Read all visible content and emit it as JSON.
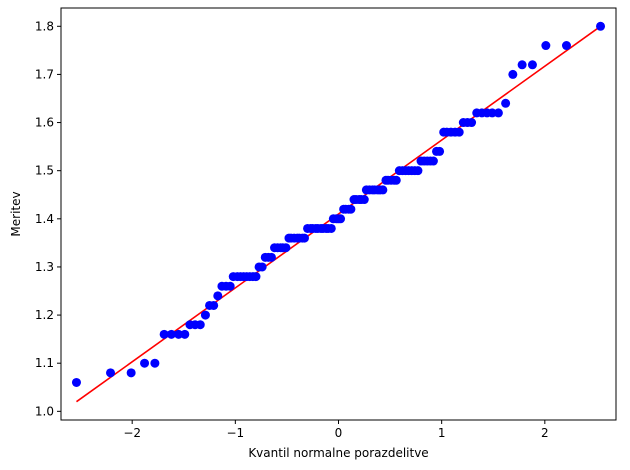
{
  "chart_data": {
    "type": "scatter",
    "title": "",
    "xlabel": "Kvantil normalne porazdelitve",
    "ylabel": "Meritev",
    "xlim": [
      -2.69,
      2.69
    ],
    "ylim": [
      0.982,
      1.838
    ],
    "x_ticks": [
      -2,
      -1,
      0,
      1,
      2
    ],
    "x_tick_labels": [
      "−2",
      "−1",
      "0",
      "1",
      "2"
    ],
    "y_ticks": [
      1.0,
      1.1,
      1.2,
      1.3,
      1.4,
      1.5,
      1.6,
      1.7,
      1.8
    ],
    "y_tick_labels": [
      "1.0",
      "1.1",
      "1.2",
      "1.3",
      "1.4",
      "1.5",
      "1.6",
      "1.7",
      "1.8"
    ],
    "grid": false,
    "point_color": "#0000ff",
    "line_color": "#ff0000",
    "fit_line": {
      "x": [
        -2.54,
        2.54
      ],
      "y": [
        1.02,
        1.8
      ]
    },
    "points": [
      [
        -2.54,
        1.06
      ],
      [
        -2.21,
        1.08
      ],
      [
        -2.01,
        1.08
      ],
      [
        -1.88,
        1.1
      ],
      [
        -1.78,
        1.1
      ],
      [
        -1.69,
        1.16
      ],
      [
        -1.62,
        1.16
      ],
      [
        -1.55,
        1.16
      ],
      [
        -1.49,
        1.16
      ],
      [
        -1.44,
        1.18
      ],
      [
        -1.39,
        1.18
      ],
      [
        -1.34,
        1.18
      ],
      [
        -1.29,
        1.2
      ],
      [
        -1.25,
        1.22
      ],
      [
        -1.21,
        1.22
      ],
      [
        -1.17,
        1.24
      ],
      [
        -1.13,
        1.26
      ],
      [
        -1.09,
        1.26
      ],
      [
        -1.05,
        1.26
      ],
      [
        -1.02,
        1.28
      ],
      [
        -0.98,
        1.28
      ],
      [
        -0.95,
        1.28
      ],
      [
        -0.92,
        1.28
      ],
      [
        -0.89,
        1.28
      ],
      [
        -0.86,
        1.28
      ],
      [
        -0.83,
        1.28
      ],
      [
        -0.8,
        1.28
      ],
      [
        -0.77,
        1.3
      ],
      [
        -0.74,
        1.3
      ],
      [
        -0.71,
        1.32
      ],
      [
        -0.68,
        1.32
      ],
      [
        -0.65,
        1.32
      ],
      [
        -0.62,
        1.34
      ],
      [
        -0.59,
        1.34
      ],
      [
        -0.56,
        1.34
      ],
      [
        -0.54,
        1.34
      ],
      [
        -0.51,
        1.34
      ],
      [
        -0.48,
        1.36
      ],
      [
        -0.46,
        1.36
      ],
      [
        -0.43,
        1.36
      ],
      [
        -0.4,
        1.36
      ],
      [
        -0.38,
        1.36
      ],
      [
        -0.35,
        1.36
      ],
      [
        -0.33,
        1.36
      ],
      [
        -0.3,
        1.38
      ],
      [
        -0.27,
        1.38
      ],
      [
        -0.25,
        1.38
      ],
      [
        -0.22,
        1.38
      ],
      [
        -0.2,
        1.38
      ],
      [
        -0.17,
        1.38
      ],
      [
        -0.15,
        1.38
      ],
      [
        -0.12,
        1.38
      ],
      [
        -0.1,
        1.38
      ],
      [
        -0.07,
        1.38
      ],
      [
        -0.05,
        1.4
      ],
      [
        -0.02,
        1.4
      ],
      [
        0.0,
        1.4
      ],
      [
        0.02,
        1.4
      ],
      [
        0.05,
        1.42
      ],
      [
        0.07,
        1.42
      ],
      [
        0.1,
        1.42
      ],
      [
        0.12,
        1.42
      ],
      [
        0.15,
        1.44
      ],
      [
        0.17,
        1.44
      ],
      [
        0.2,
        1.44
      ],
      [
        0.22,
        1.44
      ],
      [
        0.25,
        1.44
      ],
      [
        0.27,
        1.46
      ],
      [
        0.3,
        1.46
      ],
      [
        0.33,
        1.46
      ],
      [
        0.35,
        1.46
      ],
      [
        0.38,
        1.46
      ],
      [
        0.4,
        1.46
      ],
      [
        0.43,
        1.46
      ],
      [
        0.46,
        1.48
      ],
      [
        0.48,
        1.48
      ],
      [
        0.51,
        1.48
      ],
      [
        0.54,
        1.48
      ],
      [
        0.56,
        1.48
      ],
      [
        0.59,
        1.5
      ],
      [
        0.62,
        1.5
      ],
      [
        0.65,
        1.5
      ],
      [
        0.68,
        1.5
      ],
      [
        0.71,
        1.5
      ],
      [
        0.74,
        1.5
      ],
      [
        0.77,
        1.5
      ],
      [
        0.8,
        1.52
      ],
      [
        0.83,
        1.52
      ],
      [
        0.86,
        1.52
      ],
      [
        0.89,
        1.52
      ],
      [
        0.92,
        1.52
      ],
      [
        0.95,
        1.54
      ],
      [
        0.98,
        1.54
      ],
      [
        1.02,
        1.58
      ],
      [
        1.05,
        1.58
      ],
      [
        1.09,
        1.58
      ],
      [
        1.13,
        1.58
      ],
      [
        1.17,
        1.58
      ],
      [
        1.21,
        1.6
      ],
      [
        1.25,
        1.6
      ],
      [
        1.29,
        1.6
      ],
      [
        1.34,
        1.62
      ],
      [
        1.39,
        1.62
      ],
      [
        1.44,
        1.62
      ],
      [
        1.49,
        1.62
      ],
      [
        1.55,
        1.62
      ],
      [
        1.62,
        1.64
      ],
      [
        1.69,
        1.7
      ],
      [
        1.78,
        1.72
      ],
      [
        1.88,
        1.72
      ],
      [
        2.01,
        1.76
      ],
      [
        2.21,
        1.76
      ],
      [
        2.54,
        1.8
      ]
    ]
  }
}
